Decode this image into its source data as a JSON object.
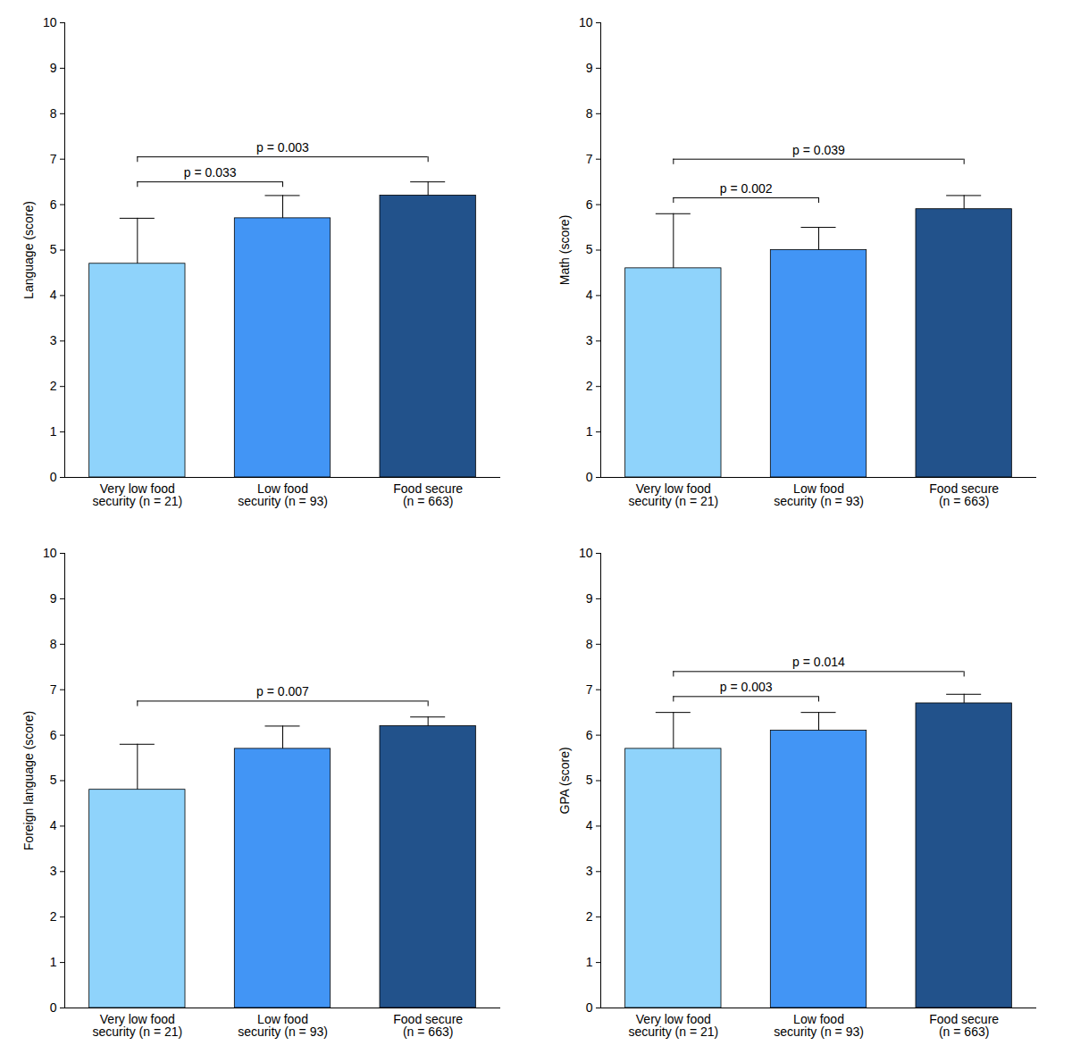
{
  "chart_data": [
    {
      "type": "bar",
      "y_label": "Language (score)",
      "categories": [
        "Very low food\nsecurity (n = 21)",
        "Low food\nsecurity (n = 93)",
        "Food secure\n(n = 663)"
      ],
      "values": [
        4.7,
        5.7,
        6.2
      ],
      "error": [
        1.0,
        0.5,
        0.3
      ],
      "colors": [
        "#8fd3fb",
        "#4295f5",
        "#22528b"
      ],
      "ylim": [
        0,
        10
      ],
      "yticks": [
        0,
        1,
        2,
        3,
        4,
        5,
        6,
        7,
        8,
        9,
        10
      ],
      "grid": false,
      "annotations": [
        {
          "from": "Very low food\nsecurity (n = 21)",
          "to": "Low food\nsecurity (n = 93)",
          "y": 6.5,
          "label": "p = 0.033"
        },
        {
          "from": "Very low food\nsecurity (n = 21)",
          "to": "Food secure\n(n = 663)",
          "y": 7.05,
          "label": "p = 0.003"
        }
      ]
    },
    {
      "type": "bar",
      "y_label": "Math (score)",
      "categories": [
        "Very low food\nsecurity (n = 21)",
        "Low food\nsecurity (n = 93)",
        "Food secure\n(n = 663)"
      ],
      "values": [
        4.6,
        5.0,
        5.9
      ],
      "error": [
        1.2,
        0.5,
        0.3
      ],
      "colors": [
        "#8fd3fb",
        "#4295f5",
        "#22528b"
      ],
      "ylim": [
        0,
        10
      ],
      "yticks": [
        0,
        1,
        2,
        3,
        4,
        5,
        6,
        7,
        8,
        9,
        10
      ],
      "grid": false,
      "annotations": [
        {
          "from": "Very low food\nsecurity (n = 21)",
          "to": "Low food\nsecurity (n = 93)",
          "y": 6.15,
          "label": "p = 0.002"
        },
        {
          "from": "Very low food\nsecurity (n = 21)",
          "to": "Food secure\n(n = 663)",
          "y": 7.0,
          "label": "p = 0.039"
        }
      ]
    },
    {
      "type": "bar",
      "y_label": "Foreign language (score)",
      "categories": [
        "Very low food\nsecurity (n = 21)",
        "Low food\nsecurity (n = 93)",
        "Food secure\n(n = 663)"
      ],
      "values": [
        4.8,
        5.7,
        6.2
      ],
      "error": [
        1.0,
        0.5,
        0.2
      ],
      "colors": [
        "#8fd3fb",
        "#4295f5",
        "#22528b"
      ],
      "ylim": [
        0,
        10
      ],
      "yticks": [
        0,
        1,
        2,
        3,
        4,
        5,
        6,
        7,
        8,
        9,
        10
      ],
      "grid": false,
      "annotations": [
        {
          "from": "Very low food\nsecurity (n = 21)",
          "to": "Food secure\n(n = 663)",
          "y": 6.75,
          "label": "p = 0.007"
        }
      ]
    },
    {
      "type": "bar",
      "y_label": "GPA (score)",
      "categories": [
        "Very low food\nsecurity (n = 21)",
        "Low food\nsecurity (n = 93)",
        "Food secure\n(n = 663)"
      ],
      "values": [
        5.7,
        6.1,
        6.7
      ],
      "error": [
        0.8,
        0.4,
        0.2
      ],
      "colors": [
        "#8fd3fb",
        "#4295f5",
        "#22528b"
      ],
      "ylim": [
        0,
        10
      ],
      "yticks": [
        0,
        1,
        2,
        3,
        4,
        5,
        6,
        7,
        8,
        9,
        10
      ],
      "grid": false,
      "annotations": [
        {
          "from": "Very low food\nsecurity (n = 21)",
          "to": "Low food\nsecurity (n = 93)",
          "y": 6.85,
          "label": "p = 0.003"
        },
        {
          "from": "Very low food\nsecurity (n = 21)",
          "to": "Food secure\n(n = 663)",
          "y": 7.4,
          "label": "p = 0.014"
        }
      ]
    }
  ]
}
